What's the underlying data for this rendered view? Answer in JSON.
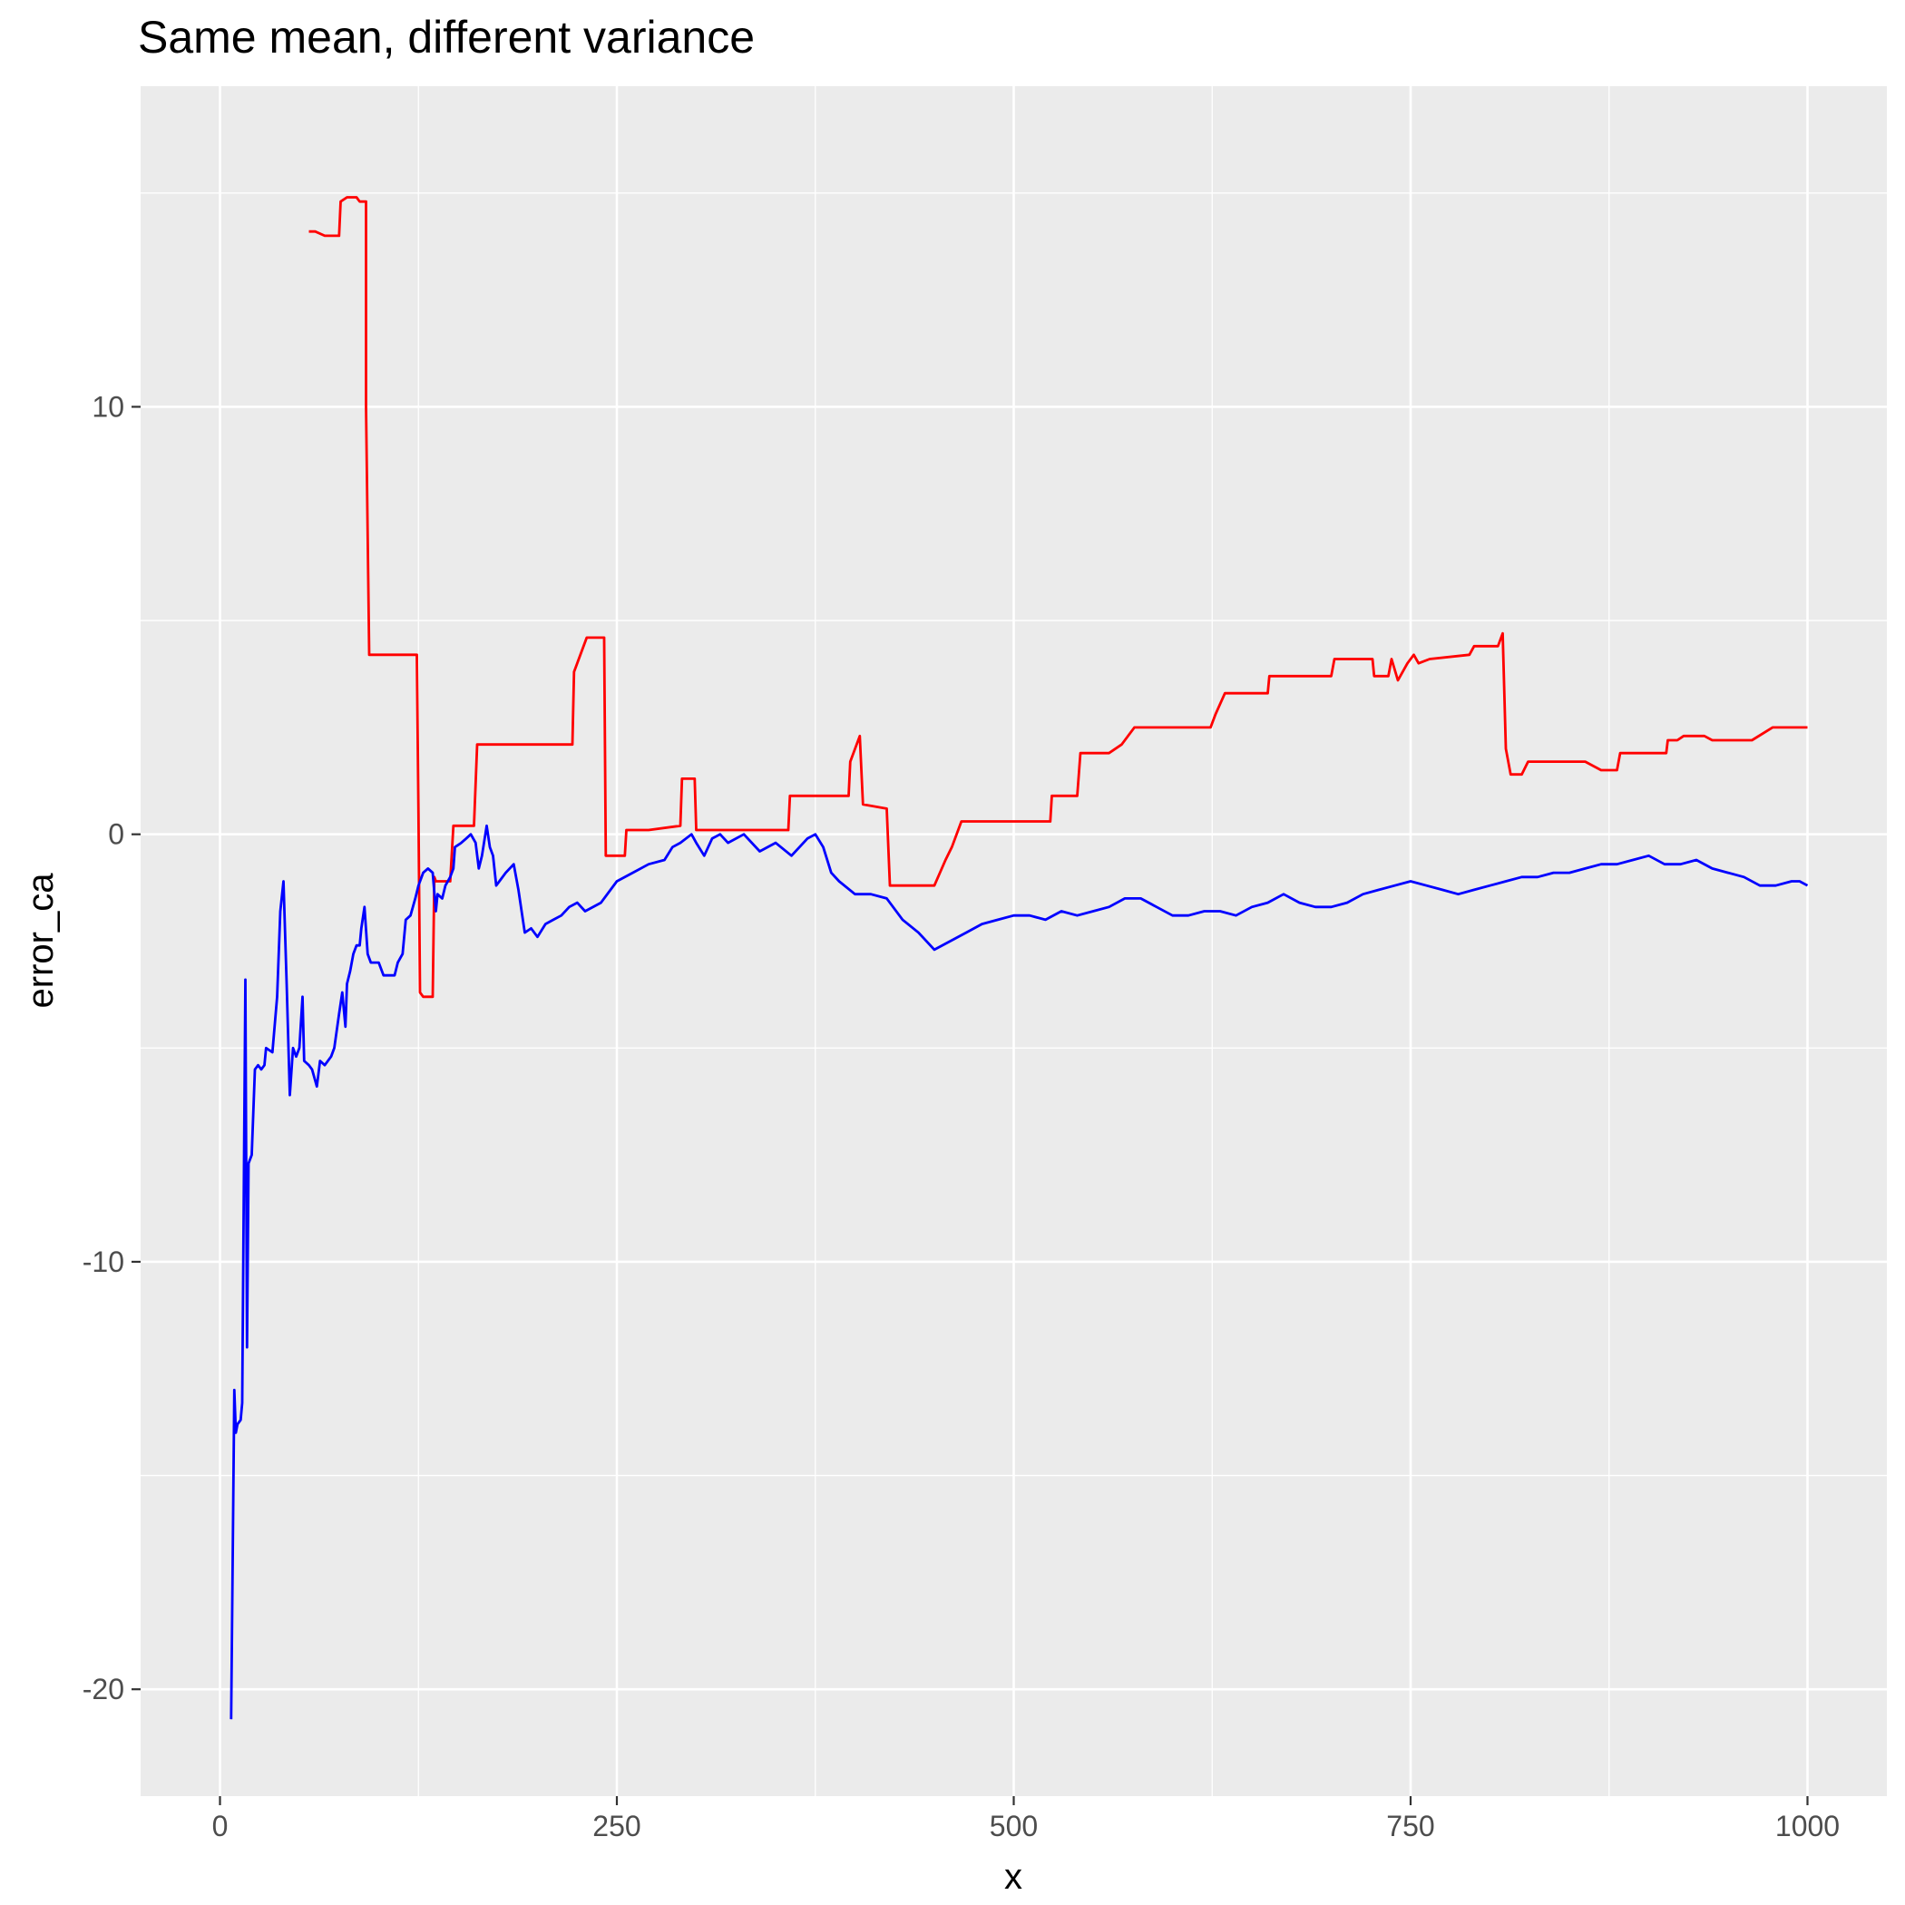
{
  "chart_data": {
    "type": "line",
    "title": "Same mean, different variance",
    "xlabel": "x",
    "ylabel": "error_ca",
    "xlim": [
      -50,
      1050
    ],
    "ylim": [
      -22.5,
      17.5
    ],
    "x_ticks": [
      0,
      250,
      500,
      750,
      1000
    ],
    "x_tick_labels": [
      "0",
      "250",
      "500",
      "750",
      "1000"
    ],
    "y_ticks": [
      -20,
      -10,
      0,
      10
    ],
    "y_tick_labels": [
      "-20",
      "-10",
      "0",
      "10"
    ],
    "x_minor": [
      125,
      375,
      625,
      875
    ],
    "y_minor": [
      -15,
      -5,
      5,
      15
    ],
    "grid": true,
    "legend": "none",
    "colors": {
      "panel": "#ebebeb",
      "grid": "#ffffff",
      "tick_text": "#4d4d4d",
      "tick_mark": "#333333"
    },
    "series": [
      {
        "color": "#ff0000",
        "points": [
          [
            56,
            14.1
          ],
          [
            60,
            14.1
          ],
          [
            66,
            14.0
          ],
          [
            72,
            14.0
          ],
          [
            75,
            14.0
          ],
          [
            76,
            14.8
          ],
          [
            80,
            14.9
          ],
          [
            86,
            14.9
          ],
          [
            88,
            14.8
          ],
          [
            92,
            14.8
          ],
          [
            92,
            10.0
          ],
          [
            94,
            4.2
          ],
          [
            97,
            4.2
          ],
          [
            104,
            4.2
          ],
          [
            114,
            4.2
          ],
          [
            124,
            4.2
          ],
          [
            125,
            0.5
          ],
          [
            126,
            -3.7
          ],
          [
            128,
            -3.8
          ],
          [
            134,
            -3.8
          ],
          [
            135,
            -1.0
          ],
          [
            136,
            -1.1
          ],
          [
            145,
            -1.1
          ],
          [
            147,
            0.2
          ],
          [
            155,
            0.2
          ],
          [
            160,
            0.2
          ],
          [
            162,
            2.1
          ],
          [
            170,
            2.1
          ],
          [
            180,
            2.1
          ],
          [
            200,
            2.1
          ],
          [
            222,
            2.1
          ],
          [
            223,
            3.8
          ],
          [
            231,
            4.6
          ],
          [
            242,
            4.6
          ],
          [
            243,
            -0.5
          ],
          [
            255,
            -0.5
          ],
          [
            256,
            0.1
          ],
          [
            270,
            0.1
          ],
          [
            290,
            0.2
          ],
          [
            291,
            1.3
          ],
          [
            299,
            1.3
          ],
          [
            300,
            0.1
          ],
          [
            320,
            0.1
          ],
          [
            340,
            0.1
          ],
          [
            358,
            0.1
          ],
          [
            359,
            0.9
          ],
          [
            380,
            0.9
          ],
          [
            396,
            0.9
          ],
          [
            397,
            1.7
          ],
          [
            403,
            2.3
          ],
          [
            405,
            0.7
          ],
          [
            420,
            0.6
          ],
          [
            422,
            -1.2
          ],
          [
            450,
            -1.2
          ],
          [
            457,
            -0.6
          ],
          [
            461,
            -0.3
          ],
          [
            467,
            0.3
          ],
          [
            480,
            0.3
          ],
          [
            500,
            0.3
          ],
          [
            523,
            0.3
          ],
          [
            524,
            0.9
          ],
          [
            540,
            0.9
          ],
          [
            542,
            1.9
          ],
          [
            560,
            1.9
          ],
          [
            568,
            2.1
          ],
          [
            576,
            2.5
          ],
          [
            600,
            2.5
          ],
          [
            624,
            2.5
          ],
          [
            627,
            2.8
          ],
          [
            633,
            3.3
          ],
          [
            660,
            3.3
          ],
          [
            661,
            3.7
          ],
          [
            700,
            3.7
          ],
          [
            702,
            4.1
          ],
          [
            726,
            4.1
          ],
          [
            727,
            3.7
          ],
          [
            736,
            3.7
          ],
          [
            738,
            4.1
          ],
          [
            742,
            3.6
          ],
          [
            748,
            4.0
          ],
          [
            752,
            4.2
          ],
          [
            755,
            4.0
          ],
          [
            762,
            4.1
          ],
          [
            787,
            4.2
          ],
          [
            790,
            4.4
          ],
          [
            805,
            4.4
          ],
          [
            808,
            4.7
          ],
          [
            810,
            2.0
          ],
          [
            813,
            1.4
          ],
          [
            820,
            1.4
          ],
          [
            824,
            1.7
          ],
          [
            860,
            1.7
          ],
          [
            870,
            1.5
          ],
          [
            880,
            1.5
          ],
          [
            882,
            1.9
          ],
          [
            911,
            1.9
          ],
          [
            912,
            2.2
          ],
          [
            918,
            2.2
          ],
          [
            922,
            2.3
          ],
          [
            935,
            2.3
          ],
          [
            940,
            2.2
          ],
          [
            955,
            2.2
          ],
          [
            965,
            2.2
          ],
          [
            978,
            2.5
          ],
          [
            1000,
            2.5
          ]
        ]
      },
      {
        "color": "#0000ff",
        "points": [
          [
            7,
            -20.7
          ],
          [
            8,
            -17.0
          ],
          [
            9,
            -13.0
          ],
          [
            10,
            -14.0
          ],
          [
            11,
            -13.8
          ],
          [
            13,
            -13.7
          ],
          [
            14,
            -13.3
          ],
          [
            16,
            -3.4
          ],
          [
            17,
            -12.0
          ],
          [
            18,
            -7.7
          ],
          [
            20,
            -7.5
          ],
          [
            22,
            -5.5
          ],
          [
            24,
            -5.4
          ],
          [
            26,
            -5.5
          ],
          [
            28,
            -5.4
          ],
          [
            29,
            -5.0
          ],
          [
            33,
            -5.1
          ],
          [
            36,
            -3.8
          ],
          [
            38,
            -1.8
          ],
          [
            40,
            -1.1
          ],
          [
            42,
            -3.5
          ],
          [
            44,
            -6.1
          ],
          [
            46,
            -5.0
          ],
          [
            48,
            -5.2
          ],
          [
            50,
            -5.0
          ],
          [
            52,
            -3.8
          ],
          [
            53,
            -5.3
          ],
          [
            56,
            -5.4
          ],
          [
            58,
            -5.5
          ],
          [
            61,
            -5.9
          ],
          [
            63,
            -5.3
          ],
          [
            66,
            -5.4
          ],
          [
            70,
            -5.2
          ],
          [
            72,
            -5.0
          ],
          [
            75,
            -4.2
          ],
          [
            77,
            -3.7
          ],
          [
            79,
            -4.5
          ],
          [
            80,
            -3.5
          ],
          [
            82,
            -3.2
          ],
          [
            84,
            -2.8
          ],
          [
            86,
            -2.6
          ],
          [
            88,
            -2.6
          ],
          [
            89,
            -2.2
          ],
          [
            91,
            -1.7
          ],
          [
            93,
            -2.8
          ],
          [
            95,
            -3.0
          ],
          [
            100,
            -3.0
          ],
          [
            103,
            -3.3
          ],
          [
            110,
            -3.3
          ],
          [
            112,
            -3.0
          ],
          [
            115,
            -2.8
          ],
          [
            117,
            -2.0
          ],
          [
            120,
            -1.9
          ],
          [
            123,
            -1.5
          ],
          [
            125,
            -1.2
          ],
          [
            128,
            -0.9
          ],
          [
            131,
            -0.8
          ],
          [
            134,
            -0.9
          ],
          [
            136,
            -1.8
          ],
          [
            137,
            -1.4
          ],
          [
            140,
            -1.5
          ],
          [
            142,
            -1.2
          ],
          [
            145,
            -1.0
          ],
          [
            147,
            -0.8
          ],
          [
            148,
            -0.3
          ],
          [
            152,
            -0.2
          ],
          [
            155,
            -0.1
          ],
          [
            158,
            0.0
          ],
          [
            161,
            -0.2
          ],
          [
            163,
            -0.8
          ],
          [
            165,
            -0.5
          ],
          [
            168,
            0.2
          ],
          [
            170,
            -0.3
          ],
          [
            172,
            -0.5
          ],
          [
            174,
            -1.2
          ],
          [
            176,
            -1.1
          ],
          [
            180,
            -0.9
          ],
          [
            185,
            -0.7
          ],
          [
            188,
            -1.3
          ],
          [
            192,
            -2.3
          ],
          [
            196,
            -2.2
          ],
          [
            200,
            -2.4
          ],
          [
            205,
            -2.1
          ],
          [
            210,
            -2.0
          ],
          [
            215,
            -1.9
          ],
          [
            220,
            -1.7
          ],
          [
            225,
            -1.6
          ],
          [
            230,
            -1.8
          ],
          [
            240,
            -1.6
          ],
          [
            250,
            -1.1
          ],
          [
            260,
            -0.9
          ],
          [
            270,
            -0.7
          ],
          [
            280,
            -0.6
          ],
          [
            285,
            -0.3
          ],
          [
            290,
            -0.2
          ],
          [
            297,
            0.0
          ],
          [
            300,
            -0.2
          ],
          [
            305,
            -0.5
          ],
          [
            310,
            -0.1
          ],
          [
            315,
            0.0
          ],
          [
            320,
            -0.2
          ],
          [
            330,
            0.0
          ],
          [
            340,
            -0.4
          ],
          [
            350,
            -0.2
          ],
          [
            360,
            -0.5
          ],
          [
            370,
            -0.1
          ],
          [
            375,
            0.0
          ],
          [
            380,
            -0.3
          ],
          [
            385,
            -0.9
          ],
          [
            390,
            -1.1
          ],
          [
            400,
            -1.4
          ],
          [
            410,
            -1.4
          ],
          [
            420,
            -1.5
          ],
          [
            430,
            -2.0
          ],
          [
            440,
            -2.3
          ],
          [
            450,
            -2.7
          ],
          [
            460,
            -2.5
          ],
          [
            470,
            -2.3
          ],
          [
            480,
            -2.1
          ],
          [
            490,
            -2.0
          ],
          [
            500,
            -1.9
          ],
          [
            510,
            -1.9
          ],
          [
            520,
            -2.0
          ],
          [
            530,
            -1.8
          ],
          [
            540,
            -1.9
          ],
          [
            550,
            -1.8
          ],
          [
            560,
            -1.7
          ],
          [
            570,
            -1.5
          ],
          [
            580,
            -1.5
          ],
          [
            590,
            -1.7
          ],
          [
            600,
            -1.9
          ],
          [
            610,
            -1.9
          ],
          [
            620,
            -1.8
          ],
          [
            630,
            -1.8
          ],
          [
            640,
            -1.9
          ],
          [
            650,
            -1.7
          ],
          [
            660,
            -1.6
          ],
          [
            670,
            -1.4
          ],
          [
            680,
            -1.6
          ],
          [
            690,
            -1.7
          ],
          [
            700,
            -1.7
          ],
          [
            710,
            -1.6
          ],
          [
            720,
            -1.4
          ],
          [
            730,
            -1.3
          ],
          [
            740,
            -1.2
          ],
          [
            750,
            -1.1
          ],
          [
            760,
            -1.2
          ],
          [
            770,
            -1.3
          ],
          [
            780,
            -1.4
          ],
          [
            790,
            -1.3
          ],
          [
            800,
            -1.2
          ],
          [
            810,
            -1.1
          ],
          [
            820,
            -1.0
          ],
          [
            830,
            -1.0
          ],
          [
            840,
            -0.9
          ],
          [
            850,
            -0.9
          ],
          [
            860,
            -0.8
          ],
          [
            870,
            -0.7
          ],
          [
            880,
            -0.7
          ],
          [
            890,
            -0.6
          ],
          [
            900,
            -0.5
          ],
          [
            910,
            -0.7
          ],
          [
            920,
            -0.7
          ],
          [
            930,
            -0.6
          ],
          [
            940,
            -0.8
          ],
          [
            950,
            -0.9
          ],
          [
            960,
            -1.0
          ],
          [
            970,
            -1.2
          ],
          [
            980,
            -1.2
          ],
          [
            990,
            -1.1
          ],
          [
            995,
            -1.1
          ],
          [
            1000,
            -1.2
          ]
        ]
      }
    ]
  }
}
